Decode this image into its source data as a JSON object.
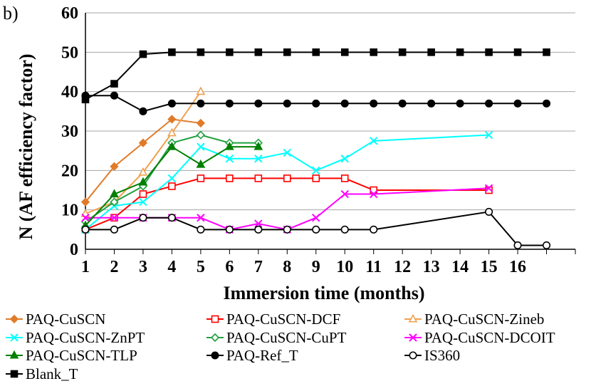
{
  "panel_label": "b)",
  "chart_data": {
    "type": "line",
    "title": "",
    "xlabel": "Immersion time (months)",
    "ylabel": "N (AF efficiency factor)",
    "ylim": [
      0,
      60
    ],
    "yticks": [
      0,
      10,
      20,
      30,
      40,
      50,
      60
    ],
    "categories": [
      "1",
      "2",
      "3",
      "4",
      "5",
      "6",
      "7",
      "8",
      "9",
      "10",
      "11",
      "12",
      "13",
      "14",
      "15",
      "16",
      ""
    ],
    "grid": true,
    "legend_position": "bottom",
    "series": [
      {
        "name": "PAQ-CuSCN",
        "color": "#e07b29",
        "marker": "diamond",
        "fill": true,
        "values": [
          12,
          21,
          27,
          33,
          32,
          null,
          null,
          null,
          null,
          null,
          null,
          null,
          null,
          null,
          null,
          null,
          null
        ]
      },
      {
        "name": "PAQ-CuSCN-DCF",
        "color": "#ff0000",
        "marker": "square",
        "fill": false,
        "values": [
          5,
          8,
          14,
          16,
          18,
          18,
          18,
          18,
          18,
          18,
          15,
          null,
          null,
          null,
          15,
          null,
          null
        ]
      },
      {
        "name": "PAQ-CuSCN-Zineb",
        "color": "#f0a050",
        "marker": "triangle",
        "fill": false,
        "values": [
          9,
          12,
          19.5,
          29.5,
          40,
          null,
          null,
          null,
          null,
          null,
          null,
          null,
          null,
          null,
          null,
          null,
          null
        ]
      },
      {
        "name": "PAQ-CuSCN-ZnPT",
        "color": "#00ffff",
        "marker": "x",
        "fill": false,
        "values": [
          5,
          11,
          12,
          18,
          26,
          23,
          23,
          24.5,
          20,
          23,
          27.5,
          null,
          null,
          null,
          29,
          null,
          null
        ]
      },
      {
        "name": "PAQ-CuSCN-CuPT",
        "color": "#20a040",
        "marker": "diamond",
        "fill": false,
        "values": [
          7,
          12,
          16,
          27,
          29,
          27,
          27,
          null,
          null,
          null,
          null,
          null,
          null,
          null,
          null,
          null,
          null
        ]
      },
      {
        "name": "PAQ-CuSCN-DCOIT",
        "color": "#ff00ff",
        "marker": "x",
        "fill": false,
        "values": [
          8,
          8,
          8,
          8,
          8,
          5,
          6.5,
          5,
          8,
          14,
          14,
          null,
          null,
          null,
          15.5,
          null,
          null
        ]
      },
      {
        "name": "PAQ-CuSCN-TLP",
        "color": "#008000",
        "marker": "triangle",
        "fill": true,
        "values": [
          6,
          14,
          17,
          26,
          21.5,
          26,
          26,
          null,
          null,
          null,
          null,
          null,
          null,
          null,
          null,
          null,
          null
        ]
      },
      {
        "name": "PAQ-Ref_T",
        "color": "#000000",
        "marker": "circle",
        "fill": true,
        "values": [
          39,
          39,
          35,
          37,
          37,
          37,
          37,
          37,
          37,
          37,
          37,
          37,
          37,
          37,
          37,
          37,
          37
        ]
      },
      {
        "name": "IS360",
        "color": "#000000",
        "marker": "circle",
        "fill": false,
        "values": [
          5,
          5,
          8,
          8,
          5,
          5,
          5,
          5,
          5,
          5,
          5,
          null,
          null,
          null,
          9.5,
          1,
          1
        ]
      },
      {
        "name": "Blank_T",
        "color": "#000000",
        "marker": "square",
        "fill": true,
        "values": [
          38,
          42,
          49.5,
          50,
          50,
          50,
          50,
          50,
          50,
          50,
          50,
          50,
          50,
          50,
          50,
          50,
          50
        ]
      }
    ]
  }
}
